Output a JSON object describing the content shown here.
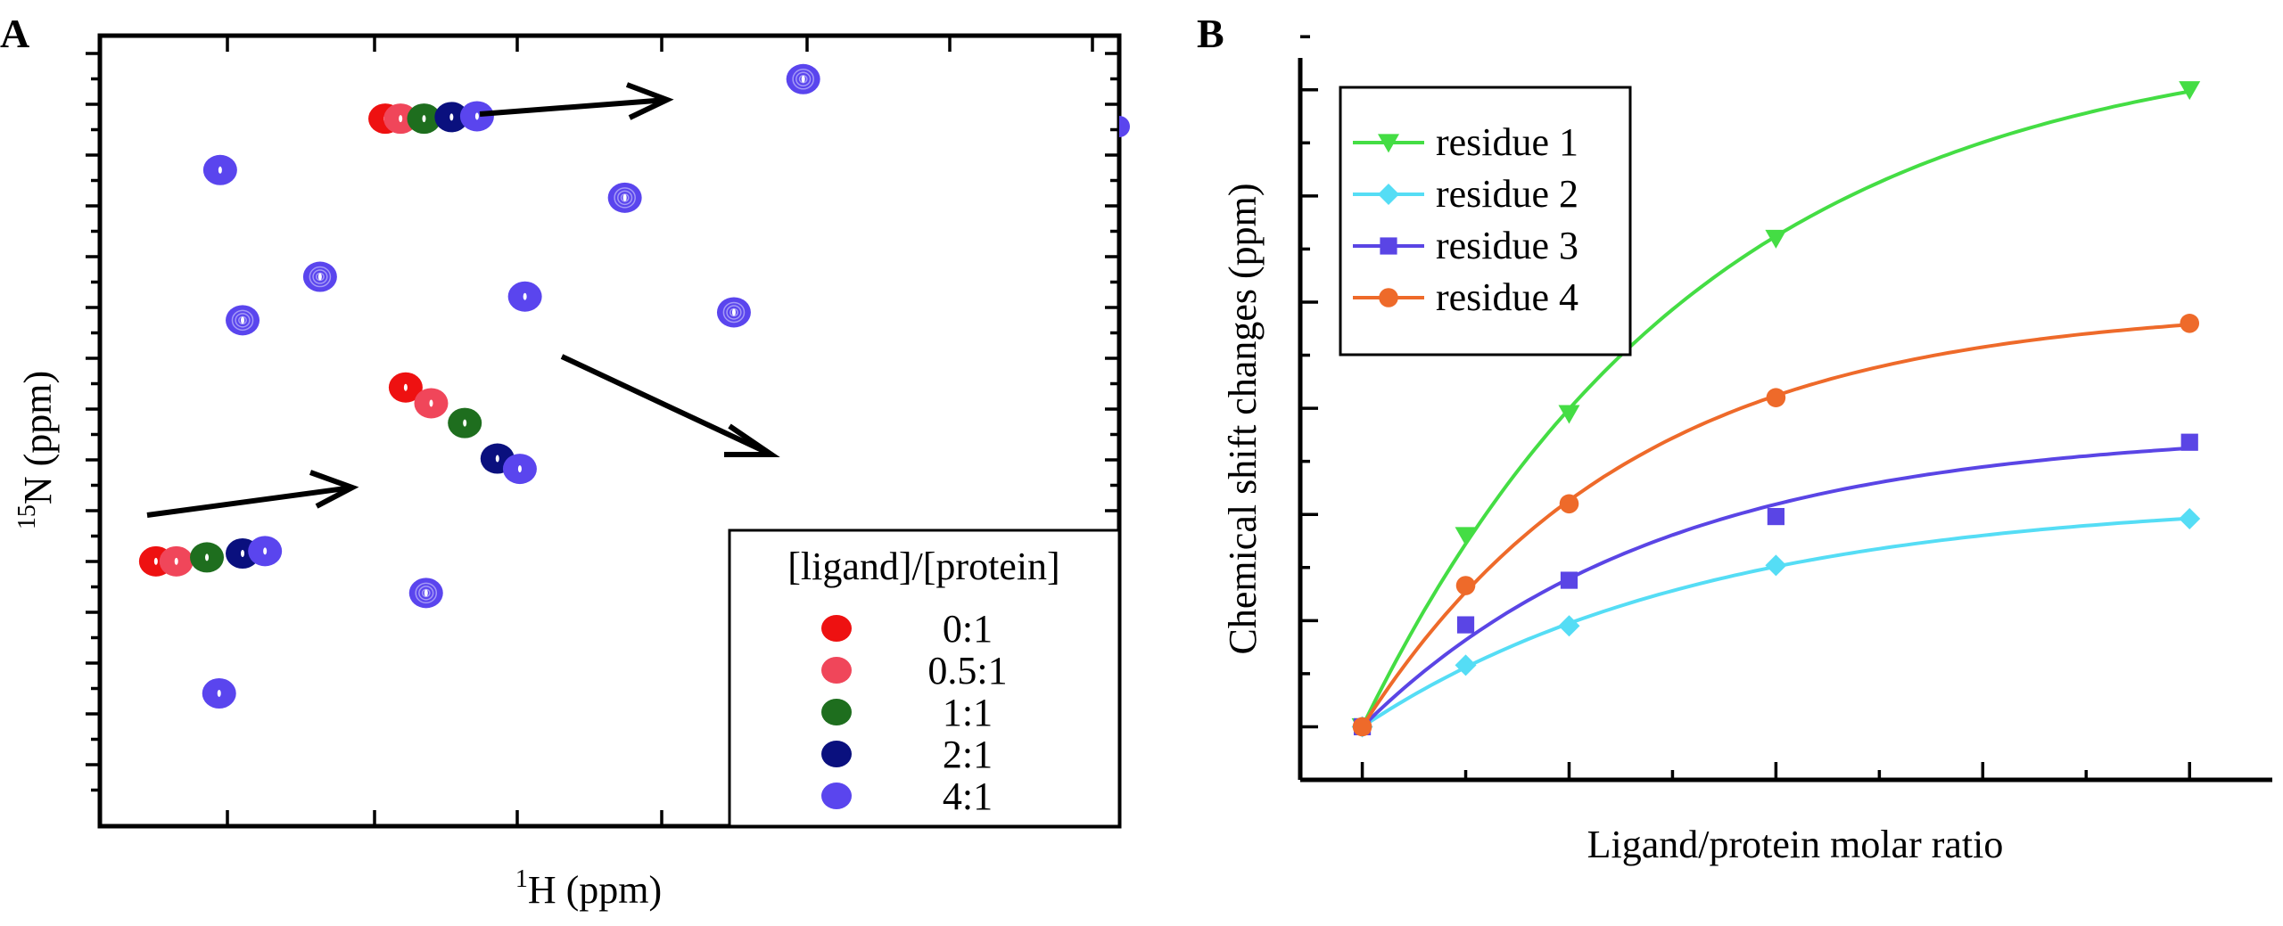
{
  "panel_a": {
    "label": "A",
    "xlabel_sup": "1",
    "xlabel": "H (ppm)",
    "ylabel_sup": "15",
    "ylabel": "N (ppm)",
    "legend_title": "[ligand]/[protein]",
    "legend_entries": [
      {
        "label": "0:1",
        "color": "#ee1111"
      },
      {
        "label": "0.5:1",
        "color": "#f0465a"
      },
      {
        "label": "1:1",
        "color": "#1e6e1e"
      },
      {
        "label": "2:1",
        "color": "#0a107e"
      },
      {
        "label": "4:1",
        "color": "#5a45ee"
      }
    ]
  },
  "panel_b": {
    "label": "B"
  },
  "chart_data": [
    {
      "type": "scatter",
      "title": "",
      "panel": "A",
      "xlabel": "1H (ppm)",
      "ylabel": "15N (ppm)",
      "axis_scale": "relative (no tick labels)",
      "series_colors": [
        "#ee1111",
        "#f0465a",
        "#1e6e1e",
        "#0a107e",
        "#5a45ee"
      ],
      "titration_tracks": [
        {
          "points": [
            [
              0.055,
              0.335
            ],
            [
              0.075,
              0.335
            ],
            [
              0.105,
              0.34
            ],
            [
              0.14,
              0.345
            ],
            [
              0.162,
              0.348
            ]
          ]
        },
        {
          "points": [
            [
              0.28,
              0.895
            ],
            [
              0.295,
              0.895
            ],
            [
              0.318,
              0.895
            ],
            [
              0.345,
              0.897
            ],
            [
              0.37,
              0.898
            ]
          ]
        },
        {
          "points": [
            [
              0.3,
              0.555
            ],
            [
              0.325,
              0.535
            ],
            [
              0.358,
              0.51
            ],
            [
              0.39,
              0.465
            ],
            [
              0.412,
              0.452
            ]
          ]
        }
      ],
      "unperturbed_peaks": [
        [
          0.118,
          0.83
        ],
        [
          0.14,
          0.64
        ],
        [
          0.216,
          0.695
        ],
        [
          0.417,
          0.67
        ],
        [
          0.515,
          0.795
        ],
        [
          0.622,
          0.65
        ],
        [
          0.117,
          0.168
        ],
        [
          0.32,
          0.295
        ],
        [
          0.69,
          0.945
        ]
      ],
      "legend_title": "[ligand]/[protein]",
      "legend_position": "bottom-right"
    },
    {
      "type": "line",
      "title": "",
      "panel": "B",
      "xlabel": "Ligand/protein molar ratio",
      "ylabel": "Chemical shift changes (ppm)",
      "x": [
        0,
        0.5,
        1,
        2,
        4
      ],
      "xlim": [
        -0.3,
        4.4
      ],
      "ylim": [
        -0.05,
        0.63
      ],
      "x_major_ticks": [
        0,
        1,
        2,
        3,
        4
      ],
      "x_minor_ticks": [
        0.5,
        1.5,
        2.5,
        3.5
      ],
      "y_major_ticks": [
        0,
        0.1,
        0.2,
        0.3,
        0.4,
        0.5,
        0.6
      ],
      "series": [
        {
          "name": "residue 1",
          "values": [
            0,
            0.18,
            0.295,
            0.46,
            0.6
          ],
          "color": "#44dd44",
          "marker": "triangle-down"
        },
        {
          "name": "residue 2",
          "values": [
            0,
            0.058,
            0.095,
            0.152,
            0.196
          ],
          "color": "#55ddf5",
          "marker": "diamond"
        },
        {
          "name": "residue 3",
          "values": [
            0,
            0.096,
            0.138,
            0.198,
            0.268
          ],
          "color": "#5a45e5",
          "marker": "square"
        },
        {
          "name": "residue 4",
          "values": [
            0,
            0.133,
            0.21,
            0.31,
            0.38
          ],
          "color": "#ee6a2a",
          "marker": "circle"
        }
      ],
      "legend_position": "top-left",
      "grid": false
    }
  ]
}
